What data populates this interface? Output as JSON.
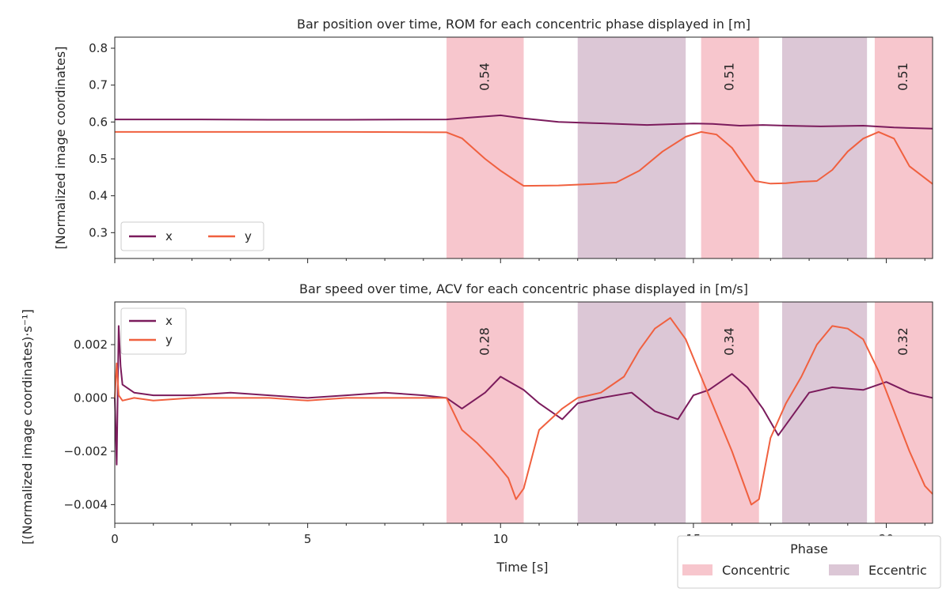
{
  "figure": {
    "xlabel": "Time [s]",
    "legend_phase": {
      "title": "Phase",
      "items": [
        {
          "label": "Concentric",
          "color": "#f7c6cd"
        },
        {
          "label": "Eccentric",
          "color": "#dcc7d6"
        }
      ]
    }
  },
  "chart_data": [
    {
      "type": "line",
      "title": "Bar position over time, ROM for each concentric phase displayed in [m]",
      "ylabel": "[Normalized image coordinates]",
      "xlim": [
        0,
        21.2
      ],
      "ylim": [
        0.23,
        0.83
      ],
      "yticks": [
        0.3,
        0.4,
        0.5,
        0.6,
        0.7,
        0.8
      ],
      "ytick_labels": [
        "0.3",
        "0.4",
        "0.5",
        "0.6",
        "0.7",
        "0.8"
      ],
      "legend": {
        "placement": "lower-left",
        "columns": 2
      },
      "series": [
        {
          "name": "x",
          "color": "#7b1b5c",
          "x": [
            0,
            2,
            4,
            6,
            8.6,
            9.2,
            10.0,
            10.6,
            11.5,
            12.4,
            13.8,
            14.4,
            15.0,
            15.5,
            16.2,
            16.8,
            17.4,
            18.3,
            19.4,
            20.2,
            21.2
          ],
          "values": [
            0.607,
            0.607,
            0.606,
            0.606,
            0.607,
            0.612,
            0.618,
            0.61,
            0.6,
            0.597,
            0.592,
            0.594,
            0.596,
            0.595,
            0.59,
            0.592,
            0.59,
            0.588,
            0.59,
            0.585,
            0.582
          ]
        },
        {
          "name": "y",
          "color": "#f0603f",
          "x": [
            0,
            2,
            4,
            6,
            8.6,
            9.0,
            9.6,
            10.0,
            10.4,
            10.6,
            11.5,
            12.4,
            13.0,
            13.6,
            14.2,
            14.8,
            15.2,
            15.6,
            16.0,
            16.4,
            16.6,
            17.0,
            17.4,
            17.8,
            18.2,
            18.6,
            19.0,
            19.4,
            19.8,
            20.2,
            20.6,
            21.2
          ],
          "values": [
            0.573,
            0.573,
            0.573,
            0.573,
            0.572,
            0.556,
            0.5,
            0.468,
            0.44,
            0.427,
            0.428,
            0.432,
            0.436,
            0.468,
            0.52,
            0.56,
            0.573,
            0.566,
            0.53,
            0.47,
            0.44,
            0.433,
            0.434,
            0.438,
            0.44,
            0.47,
            0.52,
            0.555,
            0.573,
            0.555,
            0.48,
            0.432
          ]
        }
      ],
      "phases": [
        {
          "type": "concentric",
          "start": 8.6,
          "end": 10.6,
          "label": "0.54"
        },
        {
          "type": "eccentric",
          "start": 12.0,
          "end": 14.8
        },
        {
          "type": "concentric",
          "start": 15.2,
          "end": 16.7,
          "label": "0.51"
        },
        {
          "type": "eccentric",
          "start": 17.3,
          "end": 19.5
        },
        {
          "type": "concentric",
          "start": 19.7,
          "end": 21.2,
          "label": "0.51"
        }
      ]
    },
    {
      "type": "line",
      "title": "Bar speed over time, ACV for each concentric phase displayed in [m/s]",
      "ylabel": "[(Normalized image coordinates)·s⁻¹]",
      "xlim": [
        0,
        21.2
      ],
      "ylim": [
        -0.0047,
        0.0036
      ],
      "yticks": [
        -0.004,
        -0.002,
        0.0,
        0.002
      ],
      "ytick_labels": [
        "−0.004",
        "−0.002",
        "0.000",
        "0.002"
      ],
      "xticks": [
        0,
        5,
        10,
        15,
        20
      ],
      "xtick_labels": [
        "0",
        "5",
        "10",
        "15",
        "20"
      ],
      "legend": {
        "placement": "upper-left",
        "columns": 1
      },
      "series": [
        {
          "name": "x",
          "color": "#7b1b5c",
          "x": [
            0,
            0.05,
            0.1,
            0.15,
            0.2,
            0.5,
            1,
            2,
            3,
            4,
            5,
            6,
            7,
            8,
            8.6,
            9.0,
            9.6,
            10.0,
            10.6,
            11.0,
            11.6,
            12.0,
            12.6,
            13.4,
            14.0,
            14.6,
            15.0,
            15.4,
            16.0,
            16.4,
            16.8,
            17.2,
            17.6,
            18.0,
            18.6,
            19.4,
            20.0,
            20.6,
            21.2
          ],
          "values": [
            0.0,
            -0.0025,
            0.0027,
            0.0012,
            0.0005,
            0.0002,
            0.0001,
            0.0001,
            0.0002,
            0.0001,
            0.0,
            0.0001,
            0.0002,
            0.0001,
            0.0,
            -0.0004,
            0.0002,
            0.0008,
            0.0003,
            -0.0002,
            -0.0008,
            -0.0002,
            0.0,
            0.0002,
            -0.0005,
            -0.0008,
            0.0001,
            0.0003,
            0.0009,
            0.0004,
            -0.0004,
            -0.0014,
            -0.0006,
            0.0002,
            0.0004,
            0.0003,
            0.0006,
            0.0002,
            0.0
          ]
        },
        {
          "name": "y",
          "color": "#f0603f",
          "x": [
            0,
            0.05,
            0.1,
            0.2,
            0.5,
            1,
            2,
            3,
            4,
            5,
            6,
            7,
            8,
            8.6,
            9.0,
            9.4,
            9.8,
            10.2,
            10.4,
            10.6,
            11.0,
            11.6,
            12.0,
            12.6,
            13.2,
            13.6,
            14.0,
            14.4,
            14.8,
            15.2,
            15.6,
            16.0,
            16.3,
            16.5,
            16.7,
            17.0,
            17.4,
            17.8,
            18.2,
            18.6,
            19.0,
            19.4,
            19.8,
            20.2,
            20.6,
            21.0,
            21.2
          ],
          "values": [
            0.0,
            0.0013,
            0.0001,
            -0.0001,
            0.0,
            -0.0001,
            0.0,
            0.0,
            0.0,
            -0.0001,
            0.0,
            0.0,
            0.0,
            0.0,
            -0.0012,
            -0.0017,
            -0.0023,
            -0.003,
            -0.0038,
            -0.0034,
            -0.0012,
            -0.0004,
            0.0,
            0.0002,
            0.0008,
            0.0018,
            0.0026,
            0.003,
            0.0022,
            0.0008,
            -0.0006,
            -0.002,
            -0.0032,
            -0.004,
            -0.0038,
            -0.0015,
            -0.0002,
            0.0008,
            0.002,
            0.0027,
            0.0026,
            0.0022,
            0.001,
            -0.0005,
            -0.002,
            -0.0033,
            -0.0036
          ]
        }
      ],
      "phases": [
        {
          "type": "concentric",
          "start": 8.6,
          "end": 10.6,
          "label": "0.28"
        },
        {
          "type": "eccentric",
          "start": 12.0,
          "end": 14.8
        },
        {
          "type": "concentric",
          "start": 15.2,
          "end": 16.7,
          "label": "0.34"
        },
        {
          "type": "eccentric",
          "start": 17.3,
          "end": 19.5
        },
        {
          "type": "concentric",
          "start": 19.7,
          "end": 21.2,
          "label": "0.32"
        }
      ]
    }
  ]
}
